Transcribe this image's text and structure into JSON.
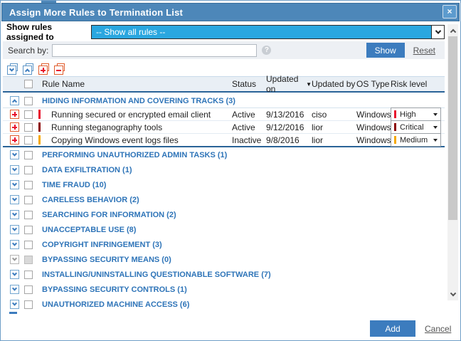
{
  "dialog": {
    "title": "Assign More Rules to Termination List",
    "close_glyph": "×"
  },
  "filter": {
    "label": "Show rules assigned to",
    "selected_option": "-- Show all rules --"
  },
  "search": {
    "label": "Search by:",
    "value": "",
    "placeholder": "",
    "help_glyph": "?",
    "show_button": "Show",
    "reset_link": "Reset"
  },
  "toolbar": {
    "icons": [
      {
        "name": "expand-all-groups-icon"
      },
      {
        "name": "collapse-all-groups-icon"
      },
      {
        "name": "check-all-rules-icon"
      },
      {
        "name": "uncheck-all-rules-icon"
      }
    ]
  },
  "table": {
    "columns": {
      "rule_name": "Rule Name",
      "status": "Status",
      "updated_on": "Updated on",
      "sort_arrow": "▼",
      "updated_by": "Updated by",
      "os_type": "OS Type",
      "risk_level": "Risk level"
    },
    "expanded_group": {
      "label": "HIDING INFORMATION AND COVERING TRACKS (3)"
    },
    "rules": [
      {
        "name": "Running secured or encrypted email client",
        "status": "Active",
        "updated_on": "9/13/2016",
        "updated_by": "ciso",
        "os_type": "Windows",
        "risk": "High",
        "risk_color": "#e8112d"
      },
      {
        "name": "Running steganography tools",
        "status": "Active",
        "updated_on": "9/12/2016",
        "updated_by": "lior",
        "os_type": "Windows",
        "risk": "Critical",
        "risk_color": "#8b0000"
      },
      {
        "name": "Copying Windows event logs files",
        "status": "Inactive",
        "updated_on": "9/8/2016",
        "updated_by": "lior",
        "os_type": "Windows",
        "risk": "Medium",
        "risk_color": "#f5a800"
      }
    ],
    "groups": [
      {
        "label": "PERFORMING UNAUTHORIZED ADMIN TASKS (1)",
        "disabled": false
      },
      {
        "label": "DATA EXFILTRATION (1)",
        "disabled": false
      },
      {
        "label": "TIME FRAUD (10)",
        "disabled": false
      },
      {
        "label": "CARELESS BEHAVIOR (2)",
        "disabled": false
      },
      {
        "label": "SEARCHING FOR INFORMATION (2)",
        "disabled": false
      },
      {
        "label": "UNACCEPTABLE USE (8)",
        "disabled": false
      },
      {
        "label": "COPYRIGHT INFRINGEMENT (3)",
        "disabled": false
      },
      {
        "label": "BYPASSING SECURITY MEANS (0)",
        "disabled": true
      },
      {
        "label": "INSTALLING/UNINSTALLING QUESTIONABLE SOFTWARE (7)",
        "disabled": false
      },
      {
        "label": "BYPASSING SECURITY CONTROLS (1)",
        "disabled": false
      },
      {
        "label": "UNAUTHORIZED MACHINE ACCESS (6)",
        "disabled": false
      }
    ]
  },
  "footer": {
    "add_button": "Add",
    "cancel_link": "Cancel"
  },
  "colors": {
    "titlebar_blue": "#4d87b9",
    "highlight_cyan": "#2aa7e0",
    "button_blue": "#3c7cbe",
    "category_text_blue": "#2e74b8",
    "risk_high": "#e8112d",
    "risk_critical": "#8b0000",
    "risk_medium": "#f5a800"
  }
}
